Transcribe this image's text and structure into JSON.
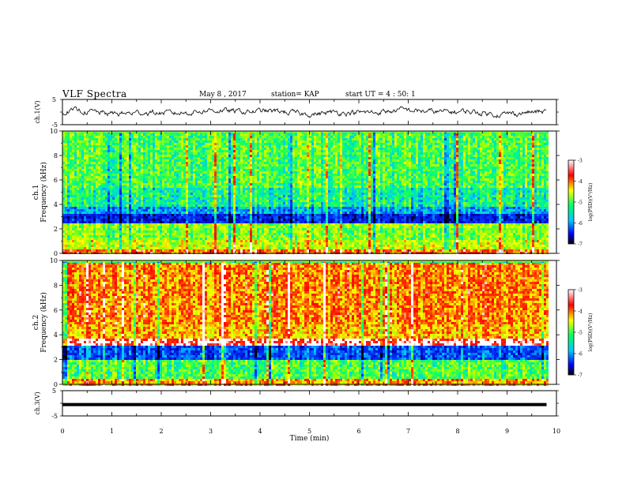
{
  "header": {
    "title": "VLF Spectra",
    "date": "May 8 , 2017",
    "station": "station= KAP",
    "start_ut": "start UT =  4 : 50: 1"
  },
  "chart_data": [
    {
      "type": "line",
      "panel": "waveform-1",
      "ylabel": "ch.1(V)",
      "ylim": [
        -5,
        5
      ],
      "yticks": [
        "5",
        "-5"
      ],
      "xlim": [
        0,
        10
      ],
      "description_values": {
        "mean": 0.0,
        "amplitude": 1.4,
        "end_min": 9.8
      }
    },
    {
      "type": "heatmap",
      "panel": "spectrogram-1",
      "ylabel": "ch.1\nFrequency (kHz)",
      "ylim": [
        0,
        10
      ],
      "yticks": [
        "0",
        "2",
        "4",
        "6",
        "8",
        "10"
      ],
      "xlim": [
        0,
        10
      ],
      "data_end_min": 9.8,
      "band_levels": [
        {
          "f": [
            0.0,
            0.5
          ],
          "level": -3.6
        },
        {
          "f": [
            0.5,
            1.1
          ],
          "level": -4.3
        },
        {
          "f": [
            1.1,
            2.2
          ],
          "level": -4.6
        },
        {
          "f": [
            2.2,
            2.5
          ],
          "level": -4.5
        },
        {
          "f": [
            2.5,
            3.4
          ],
          "level": -6.3
        },
        {
          "f": [
            3.4,
            4.0
          ],
          "level": -5.6
        },
        {
          "f": [
            4.0,
            5.5
          ],
          "level": -5.1
        },
        {
          "f": [
            5.5,
            10.0
          ],
          "level": -4.8
        }
      ],
      "colorbar": {
        "label": "log(PSD)(V²/Hz)",
        "ticks": [
          "-3",
          "-4",
          "-5",
          "-6",
          "-7"
        ],
        "range": [
          -7,
          -3
        ]
      }
    },
    {
      "type": "heatmap",
      "panel": "spectrogram-2",
      "ylabel": "ch.2\nFrequency (kHz)",
      "ylim": [
        0,
        10
      ],
      "yticks": [
        "0",
        "2",
        "4",
        "6",
        "8",
        "10"
      ],
      "xlim": [
        0,
        10
      ],
      "data_end_min": 9.8,
      "band_levels": [
        {
          "f": [
            0.0,
            0.5
          ],
          "level": -3.8
        },
        {
          "f": [
            0.5,
            2.0
          ],
          "level": -4.8
        },
        {
          "f": [
            2.0,
            3.2
          ],
          "level": -6.0
        },
        {
          "f": [
            3.2,
            3.7
          ],
          "level": -3.0
        },
        {
          "f": [
            3.7,
            5.0
          ],
          "level": -3.9
        },
        {
          "f": [
            5.0,
            10.0
          ],
          "level": -3.7
        }
      ],
      "colorbar": {
        "label": "log(PSD)(V²/Hz)",
        "ticks": [
          "-3",
          "-4",
          "-5",
          "-6",
          "-7"
        ],
        "range": [
          -7,
          -3
        ]
      }
    },
    {
      "type": "line",
      "panel": "waveform-3",
      "ylabel": "ch.3(V)",
      "ylim": [
        -5,
        5
      ],
      "yticks": [
        "5",
        "-5"
      ],
      "xlim": [
        0,
        10
      ],
      "xlabel": "Time (min)",
      "xticks": [
        "0",
        "1",
        "2",
        "3",
        "4",
        "5",
        "6",
        "7",
        "8",
        "9",
        "10"
      ],
      "description_values": {
        "constant": -0.5,
        "end_min": 9.8
      }
    }
  ]
}
